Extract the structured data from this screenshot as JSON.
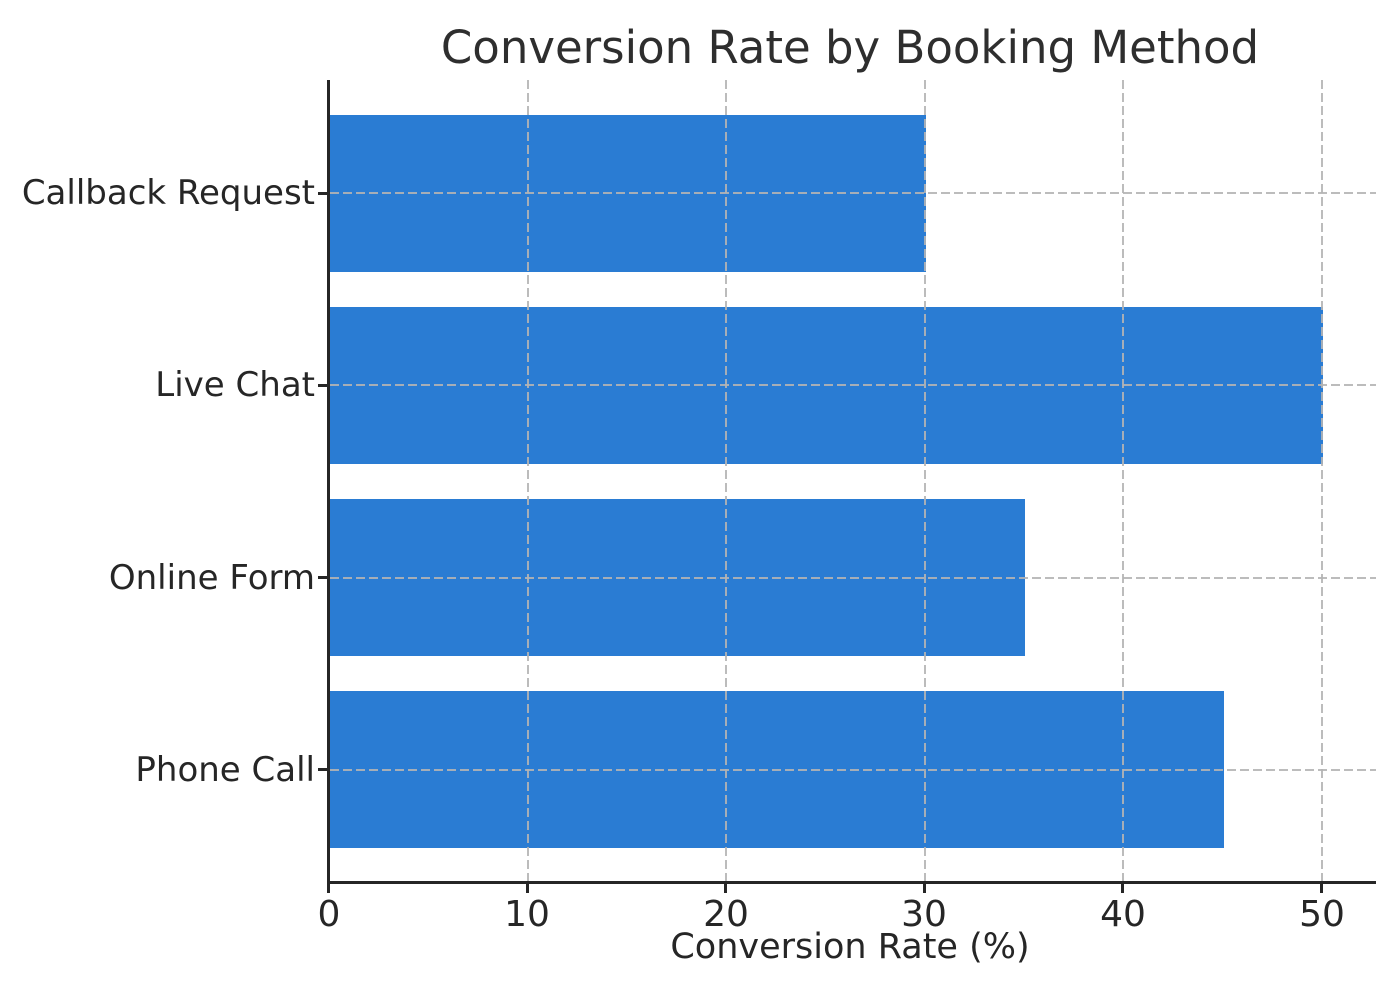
{
  "chart_data": {
    "type": "bar",
    "orientation": "horizontal",
    "title": "Conversion Rate by Booking Method",
    "xlabel": "Conversion Rate (%)",
    "ylabel": "",
    "categories": [
      "Callback Request",
      "Live Chat",
      "Online Form",
      "Phone Call"
    ],
    "values": [
      30,
      50,
      35,
      45
    ],
    "xticks": [
      0,
      10,
      20,
      30,
      40,
      50
    ],
    "xlim": [
      0,
      52.7
    ],
    "legend": "none",
    "grid": {
      "style": "dashed",
      "axes": "both",
      "drawn_above_bars": true
    },
    "colors": {
      "bar": "#2a7cd3",
      "grid": "#b4b4b4",
      "spine": "#262626",
      "text": "#262626",
      "background": "#ffffff"
    }
  }
}
